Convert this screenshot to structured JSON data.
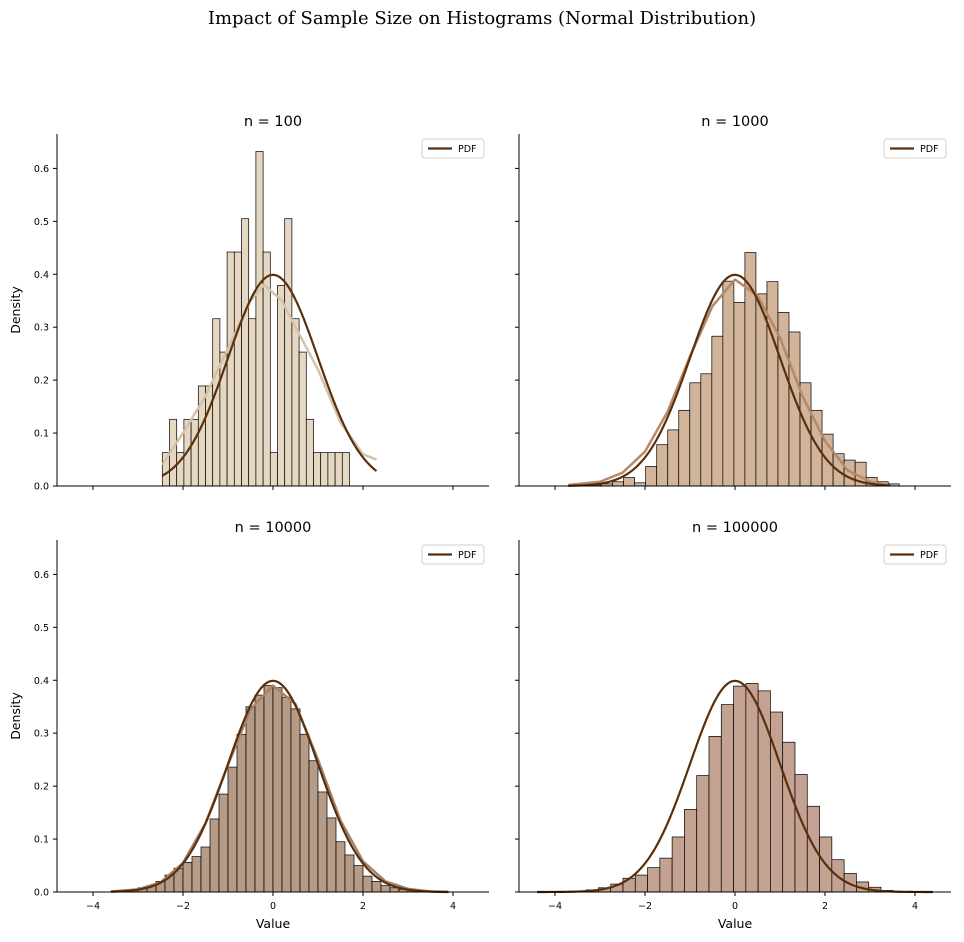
{
  "figure": {
    "suptitle": "Impact of Sample Size on Histograms (Normal Distribution)"
  },
  "chart_data": [
    {
      "type": "bar",
      "title": "n = 100",
      "xlabel": "",
      "ylabel": "Density",
      "legend": [
        "PDF"
      ],
      "legend_loc": "upper right",
      "xlim": [
        -4.8,
        4.8
      ],
      "ylim": [
        0,
        0.665
      ],
      "xticks": [
        -4,
        -2,
        0,
        2,
        4
      ],
      "yticks": [
        0.0,
        0.1,
        0.2,
        0.3,
        0.4,
        0.5,
        0.6
      ],
      "show_xticklabels": false,
      "show_yticklabels": true,
      "bin_start": -2.46,
      "bin_width": 0.16,
      "densities": [
        0.063,
        0.126,
        0.063,
        0.126,
        0.126,
        0.189,
        0.189,
        0.316,
        0.253,
        0.442,
        0.442,
        0.505,
        0.316,
        0.632,
        0.442,
        0.063,
        0.379,
        0.505,
        0.316,
        0.253,
        0.126,
        0.063,
        0.063,
        0.063,
        0.063,
        0.063
      ],
      "kde_x": [
        -2.46,
        -2.0,
        -1.5,
        -1.0,
        -0.5,
        -0.2,
        0.2,
        0.5,
        1.0,
        1.5,
        2.0,
        2.3
      ],
      "kde_y": [
        0.04,
        0.1,
        0.17,
        0.26,
        0.35,
        0.38,
        0.35,
        0.3,
        0.22,
        0.12,
        0.06,
        0.05
      ],
      "pdf_range": [
        -2.46,
        2.3
      ],
      "bar_color": "#e6d7c3",
      "kde_color": "#d6c2a8"
    },
    {
      "type": "bar",
      "title": "n = 1000",
      "xlabel": "",
      "ylabel": "",
      "legend": [
        "PDF"
      ],
      "legend_loc": "upper right",
      "xlim": [
        -4.8,
        4.8
      ],
      "ylim": [
        0,
        0.665
      ],
      "xticks": [
        -4,
        -2,
        0,
        2,
        4
      ],
      "yticks": [
        0.0,
        0.1,
        0.2,
        0.3,
        0.4,
        0.5,
        0.6
      ],
      "show_xticklabels": false,
      "show_yticklabels": false,
      "bin_start": -3.7,
      "bin_width": 0.245,
      "densities": [
        0.002,
        0.002,
        0.002,
        0.004,
        0.008,
        0.016,
        0.006,
        0.037,
        0.078,
        0.106,
        0.143,
        0.195,
        0.212,
        0.283,
        0.387,
        0.347,
        0.441,
        0.363,
        0.386,
        0.328,
        0.291,
        0.195,
        0.143,
        0.098,
        0.061,
        0.049,
        0.045,
        0.016,
        0.008,
        0.004
      ],
      "kde_x": [
        -3.7,
        -3,
        -2.5,
        -2,
        -1.5,
        -1,
        -0.5,
        0,
        0.5,
        1,
        1.5,
        2,
        2.5,
        3,
        3.4
      ],
      "kde_y": [
        0.002,
        0.008,
        0.025,
        0.065,
        0.14,
        0.245,
        0.34,
        0.39,
        0.36,
        0.28,
        0.17,
        0.085,
        0.03,
        0.008,
        0.002
      ],
      "pdf_range": [
        -3.7,
        3.45
      ],
      "bar_color": "#d2b49b",
      "kde_color": "#b5896a"
    },
    {
      "type": "bar",
      "title": "n = 10000",
      "xlabel": "Value",
      "ylabel": "Density",
      "legend": [
        "PDF"
      ],
      "legend_loc": "upper right",
      "xlim": [
        -4.8,
        4.8
      ],
      "ylim": [
        0,
        0.665
      ],
      "xticks": [
        -4,
        -2,
        0,
        2,
        4
      ],
      "yticks": [
        0.0,
        0.1,
        0.2,
        0.3,
        0.4,
        0.5,
        0.6
      ],
      "show_xticklabels": true,
      "show_yticklabels": true,
      "bin_start": -3.6,
      "bin_width": 0.2,
      "densities": [
        0.001,
        0.002,
        0.005,
        0.008,
        0.012,
        0.02,
        0.032,
        0.045,
        0.056,
        0.067,
        0.085,
        0.138,
        0.185,
        0.236,
        0.298,
        0.35,
        0.372,
        0.39,
        0.386,
        0.368,
        0.346,
        0.298,
        0.248,
        0.189,
        0.14,
        0.095,
        0.07,
        0.05,
        0.03,
        0.02,
        0.012,
        0.008,
        0.005,
        0.003
      ],
      "kde_x": [
        -3.6,
        -3,
        -2.5,
        -2,
        -1.5,
        -1,
        -0.5,
        0,
        0.5,
        1,
        1.5,
        2,
        2.5,
        3,
        3.5,
        3.9
      ],
      "kde_y": [
        0.001,
        0.005,
        0.018,
        0.055,
        0.13,
        0.24,
        0.345,
        0.39,
        0.355,
        0.25,
        0.135,
        0.058,
        0.02,
        0.006,
        0.001,
        0.0
      ],
      "pdf_range": [
        -3.6,
        3.9
      ],
      "bar_color": "#b69b86",
      "kde_color": "#a5836a"
    },
    {
      "type": "bar",
      "title": "n = 100000",
      "xlabel": "Value",
      "ylabel": "",
      "legend": [
        "PDF"
      ],
      "legend_loc": "upper right",
      "xlim": [
        -4.8,
        4.8
      ],
      "ylim": [
        0,
        0.665
      ],
      "xticks": [
        -4,
        -2,
        0,
        2,
        4
      ],
      "yticks": [
        0.0,
        0.1,
        0.2,
        0.3,
        0.4,
        0.5,
        0.6
      ],
      "show_xticklabels": true,
      "show_yticklabels": false,
      "bin_start": -4.4,
      "bin_width": 0.273,
      "densities": [
        0.0,
        0.0,
        0.001,
        0.002,
        0.004,
        0.008,
        0.015,
        0.026,
        0.032,
        0.046,
        0.064,
        0.104,
        0.156,
        0.22,
        0.294,
        0.354,
        0.389,
        0.394,
        0.38,
        0.34,
        0.283,
        0.222,
        0.162,
        0.104,
        0.061,
        0.035,
        0.019,
        0.009,
        0.003,
        0.001,
        0.0,
        0.0
      ],
      "kde_x": [],
      "kde_y": [],
      "pdf_range": [
        -4.4,
        4.4
      ],
      "bar_color": "#c4a291",
      "kde_color": "#c4a291"
    }
  ],
  "colors": {
    "pdf_line": "#5a2f0c",
    "bar_edge": "#000000",
    "axis": "#000000"
  }
}
